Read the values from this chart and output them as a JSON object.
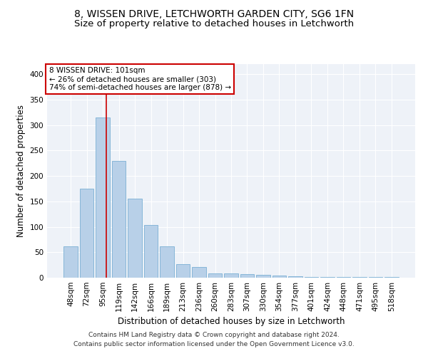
{
  "title1": "8, WISSEN DRIVE, LETCHWORTH GARDEN CITY, SG6 1FN",
  "title2": "Size of property relative to detached houses in Letchworth",
  "xlabel": "Distribution of detached houses by size in Letchworth",
  "ylabel": "Number of detached properties",
  "categories": [
    "48sqm",
    "72sqm",
    "95sqm",
    "119sqm",
    "142sqm",
    "166sqm",
    "189sqm",
    "213sqm",
    "236sqm",
    "260sqm",
    "283sqm",
    "307sqm",
    "330sqm",
    "354sqm",
    "377sqm",
    "401sqm",
    "424sqm",
    "448sqm",
    "471sqm",
    "495sqm",
    "518sqm"
  ],
  "values": [
    62,
    175,
    315,
    230,
    156,
    103,
    62,
    27,
    21,
    9,
    9,
    7,
    6,
    4,
    3,
    2,
    2,
    1,
    1,
    1,
    1
  ],
  "bar_color": "#b8d0e8",
  "bar_edge_color": "#7aafd4",
  "red_line_index": 2,
  "annotation_line1": "8 WISSEN DRIVE: 101sqm",
  "annotation_line2": "← 26% of detached houses are smaller (303)",
  "annotation_line3": "74% of semi-detached houses are larger (878) →",
  "annotation_box_color": "#ffffff",
  "annotation_box_edge": "#cc0000",
  "red_line_color": "#cc0000",
  "ylim": [
    0,
    420
  ],
  "yticks": [
    0,
    50,
    100,
    150,
    200,
    250,
    300,
    350,
    400
  ],
  "footer1": "Contains HM Land Registry data © Crown copyright and database right 2024.",
  "footer2": "Contains public sector information licensed under the Open Government Licence v3.0.",
  "bg_color": "#eef2f8",
  "title_fontsize": 10,
  "subtitle_fontsize": 9.5,
  "axis_label_fontsize": 8.5,
  "tick_fontsize": 7.5,
  "footer_fontsize": 6.5
}
